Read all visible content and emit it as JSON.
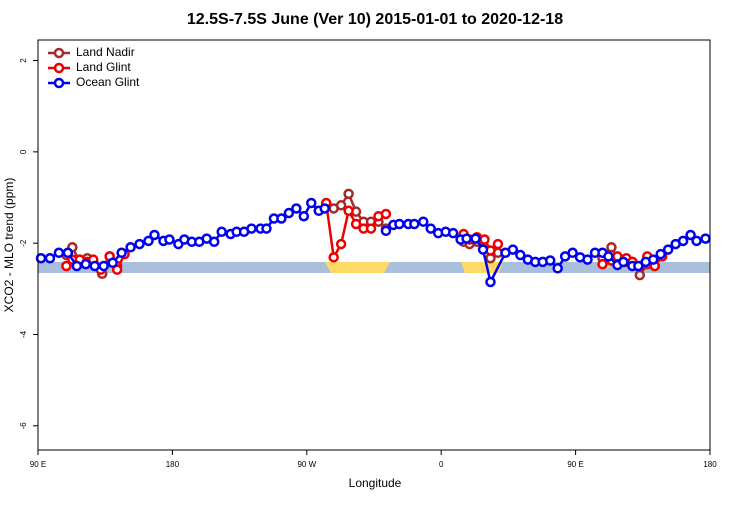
{
  "chart_data": {
    "type": "line",
    "title": "12.5S-7.5S June (Ver 10)   2015-01-01 to 2020-12-18",
    "x_label": "Longitude",
    "y_label": "XCO2 - MLO trend (ppm)",
    "xlim": [
      90,
      540
    ],
    "ylim": [
      -6.53,
      2.45
    ],
    "xticks": [
      {
        "value": 90,
        "label": "90 E"
      },
      180,
      {
        "value": 270,
        "label": "90 W"
      },
      {
        "value": 360,
        "label": "0"
      },
      {
        "value": 450,
        "label": "90 E"
      },
      {
        "value": 540,
        "label": "180"
      }
    ],
    "yticks": [
      -6,
      -4,
      -2,
      0,
      2
    ],
    "legend": "top-left",
    "series": [
      {
        "name": "Land Nadir",
        "color": "#a52a2a",
        "x": [
          109,
          113,
          118,
          123,
          127,
          133,
          138,
          143,
          200,
          288,
          293,
          298,
          303,
          308,
          313,
          318,
          323,
          350,
          375,
          379,
          384,
          389,
          393,
          398,
          430,
          468,
          474,
          478,
          484,
          488,
          493,
          498,
          503
        ],
        "values": [
          -2.26,
          -2.09,
          -2.41,
          -2.33,
          -2.41,
          -2.67,
          -2.29,
          -2.5,
          null,
          -1.24,
          -1.17,
          -0.92,
          -1.31,
          -1.53,
          -1.53,
          -1.53,
          -1.68,
          null,
          -1.97,
          -2.02,
          -1.97,
          -2.09,
          -2.33,
          -2.21,
          null,
          -2.33,
          -2.09,
          -2.33,
          -2.41,
          -2.41,
          -2.7,
          -2.46,
          -2.5
        ]
      },
      {
        "name": "Land Glint",
        "color": "#ee0000",
        "x": [
          109,
          113,
          118,
          123,
          127,
          132,
          138,
          143,
          148,
          200,
          283,
          288,
          293,
          298,
          303,
          308,
          313,
          318,
          323,
          350,
          375,
          379,
          384,
          389,
          393,
          398,
          430,
          468,
          474,
          478,
          484,
          488,
          493,
          498,
          503,
          508
        ],
        "values": [
          -2.5,
          -2.36,
          -2.36,
          -2.41,
          -2.36,
          -2.58,
          -2.29,
          -2.58,
          -2.24,
          null,
          -1.12,
          -2.31,
          -2.02,
          -1.29,
          -1.58,
          -1.68,
          -1.68,
          -1.41,
          -1.36,
          null,
          -1.8,
          -1.92,
          -1.87,
          -1.92,
          -2.16,
          -2.02,
          null,
          -2.46,
          -2.38,
          -2.29,
          -2.33,
          -2.41,
          -2.5,
          -2.29,
          -2.5,
          -2.29
        ]
      },
      {
        "name": "Ocean Glint",
        "color": "#0000ee",
        "x": [
          92,
          98,
          104,
          110,
          116,
          122,
          128,
          134,
          140,
          146,
          152,
          158,
          164,
          168,
          174,
          178,
          184,
          188,
          193,
          198,
          203,
          208,
          213,
          219,
          223,
          228,
          233,
          239,
          243,
          248,
          253,
          258,
          263,
          268,
          273,
          278,
          282,
          300,
          323,
          328,
          332,
          338,
          342,
          348,
          353,
          358,
          363,
          368,
          373,
          377,
          383,
          388,
          393,
          403,
          408,
          413,
          418,
          423,
          428,
          433,
          438,
          443,
          448,
          453,
          458,
          463,
          468,
          472,
          478,
          482,
          488,
          492,
          497,
          502,
          507,
          512,
          517,
          522,
          527,
          531,
          537
        ],
        "values": [
          -2.33,
          -2.33,
          -2.21,
          -2.21,
          -2.5,
          -2.46,
          -2.5,
          -2.5,
          -2.43,
          -2.21,
          -2.09,
          -2.02,
          -1.95,
          -1.82,
          -1.95,
          -1.92,
          -2.02,
          -1.92,
          -1.97,
          -1.97,
          -1.9,
          -1.97,
          -1.75,
          -1.8,
          -1.75,
          -1.75,
          -1.68,
          -1.68,
          -1.68,
          -1.46,
          -1.46,
          -1.34,
          -1.24,
          -1.41,
          -1.12,
          -1.29,
          -1.24,
          null,
          -1.73,
          -1.6,
          -1.58,
          -1.58,
          -1.58,
          -1.53,
          -1.68,
          -1.78,
          -1.75,
          -1.78,
          -1.92,
          -1.9,
          -1.9,
          -2.14,
          -2.85,
          -2.21,
          -2.14,
          -2.26,
          -2.36,
          -2.41,
          -2.41,
          -2.38,
          -2.55,
          -2.29,
          -2.21,
          -2.31,
          -2.36,
          -2.21,
          -2.21,
          -2.29,
          -2.48,
          -2.41,
          -2.5,
          -2.5,
          -2.41,
          -2.36,
          -2.24,
          -2.14,
          -2.02,
          -1.95,
          -1.82,
          -1.95,
          -1.9
        ]
      }
    ]
  }
}
